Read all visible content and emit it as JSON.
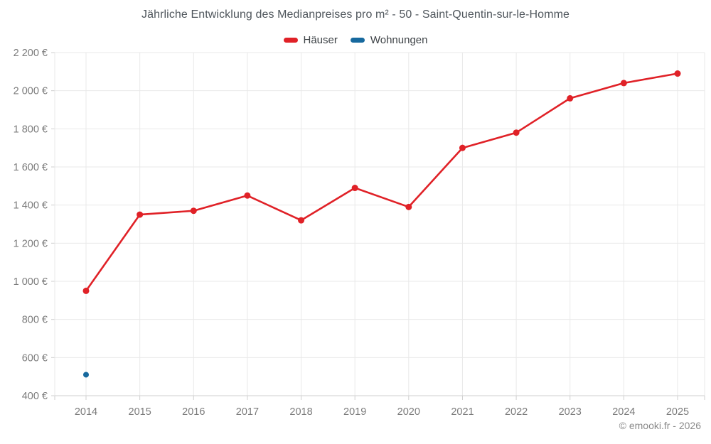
{
  "title": "Jährliche Entwicklung des Medianpreises pro m² - 50 - Saint-Quentin-sur-le-Homme",
  "footer": "© emooki.fr - 2026",
  "chart_data": {
    "type": "line",
    "title": "Jährliche Entwicklung des Medianpreises pro m² - 50 - Saint-Quentin-sur-le-Homme",
    "categories": [
      "2014",
      "2015",
      "2016",
      "2017",
      "2018",
      "2019",
      "2020",
      "2021",
      "2022",
      "2023",
      "2024",
      "2025"
    ],
    "series": [
      {
        "name": "Häuser",
        "color": "#e02127",
        "marker_radius": 4.5,
        "values": [
          950,
          1350,
          1370,
          1450,
          1320,
          1490,
          1390,
          1700,
          1780,
          1960,
          2040,
          2090
        ]
      },
      {
        "name": "Wohnungen",
        "color": "#17699e",
        "marker_radius": 4,
        "values": [
          510,
          null,
          null,
          null,
          null,
          null,
          null,
          null,
          null,
          null,
          null,
          null
        ]
      }
    ],
    "xlabel": "",
    "ylabel": "",
    "ylabel_suffix": " €",
    "ylim": [
      400,
      2200
    ],
    "ytick_step": 200,
    "ytick_labels": [
      "400 €",
      "600 €",
      "800 €",
      "1 000 €",
      "1 200 €",
      "1 400 €",
      "1 600 €",
      "1 800 €",
      "2 000 €",
      "2 200 €"
    ],
    "grid": true,
    "legend_position": "top"
  },
  "colors": {
    "background": "#ffffff",
    "grid": "#e9e9e9",
    "axis_line": "#cfcfcf",
    "tick": "#cfcfcf",
    "title_text": "#4f565c",
    "legend_text": "#3e4347",
    "axis_text": "#7b7b7b",
    "footer_text": "#8a8a8a"
  }
}
